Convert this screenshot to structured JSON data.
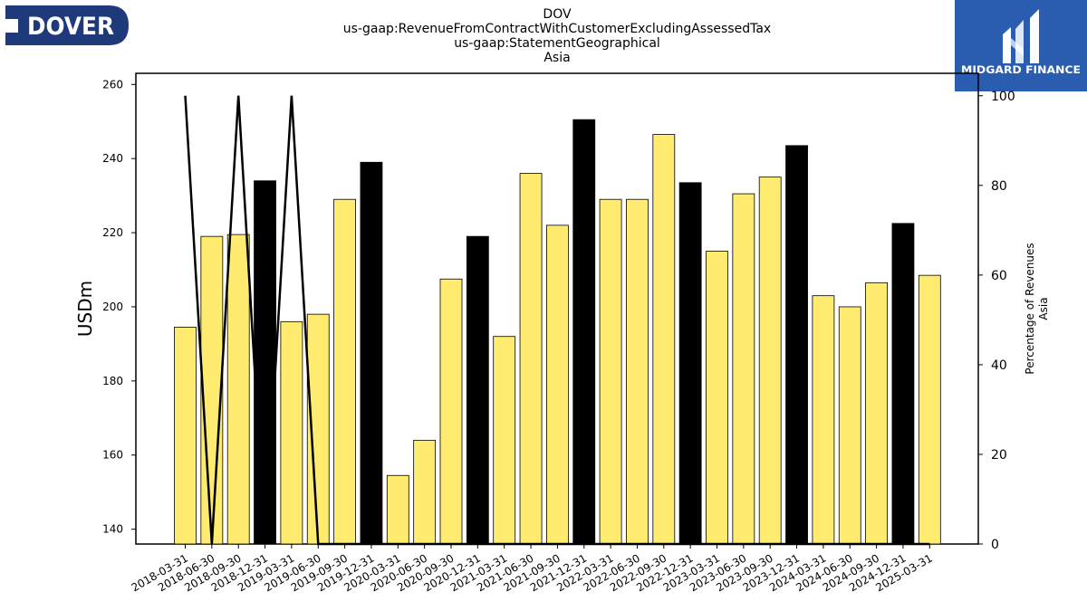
{
  "header": {
    "ticker": "DOV",
    "concept": "us-gaap:RevenueFromContractWithCustomerExcludingAssessedTax",
    "axis": "us-gaap:StatementGeographical",
    "member": "Asia"
  },
  "logos": {
    "left_text": "DOVER",
    "left_color": "#1f3a7a",
    "right_text": "MIDGARD FINANCE",
    "right_color": "#2a5db0"
  },
  "colors": {
    "bar_yellow": "#ffeb70",
    "bar_black": "#000000",
    "line": "#000000"
  },
  "chart_data": {
    "type": "bar",
    "ylabel": "USDm",
    "y2label_lines": [
      "Percentage of Revenues",
      "Asia"
    ],
    "ylim": [
      136,
      263
    ],
    "yticks": [
      140,
      160,
      180,
      200,
      220,
      240,
      260
    ],
    "y2lim": [
      0,
      105
    ],
    "y2ticks": [
      0,
      20,
      40,
      60,
      80,
      100
    ],
    "categories": [
      "2018-03-31",
      "2018-06-30",
      "2018-09-30",
      "2018-12-31",
      "2019-03-31",
      "2019-06-30",
      "2019-09-30",
      "2019-12-31",
      "2020-03-31",
      "2020-06-30",
      "2020-09-30",
      "2020-12-31",
      "2021-03-31",
      "2021-06-30",
      "2021-09-30",
      "2021-12-31",
      "2022-03-31",
      "2022-06-30",
      "2022-09-30",
      "2022-12-31",
      "2023-03-31",
      "2023-06-30",
      "2023-09-30",
      "2023-12-31",
      "2024-03-31",
      "2024-06-30",
      "2024-09-30",
      "2024-12-31",
      "2025-03-31"
    ],
    "series": [
      {
        "values": [
          194.5,
          219,
          219.5,
          234,
          196,
          198,
          229,
          239,
          154.5,
          164,
          207.5,
          219,
          192,
          236,
          222,
          250.5,
          229,
          229,
          246.5,
          233.5,
          215,
          230.5,
          235,
          243.5,
          203,
          200,
          206.5,
          222.5,
          208.5
        ],
        "annual": [
          false,
          false,
          false,
          true,
          false,
          false,
          false,
          true,
          false,
          false,
          false,
          true,
          false,
          false,
          false,
          true,
          false,
          false,
          false,
          true,
          false,
          false,
          false,
          true,
          false,
          false,
          false,
          true,
          false
        ]
      },
      {
        "axis": "right",
        "type": "line",
        "values": [
          100,
          0,
          100,
          0,
          100,
          0,
          0,
          0,
          0,
          0,
          0,
          0,
          0,
          0,
          0,
          0,
          0,
          0,
          0,
          0,
          0,
          0,
          0,
          0,
          0,
          0,
          0,
          0,
          0
        ]
      }
    ]
  }
}
